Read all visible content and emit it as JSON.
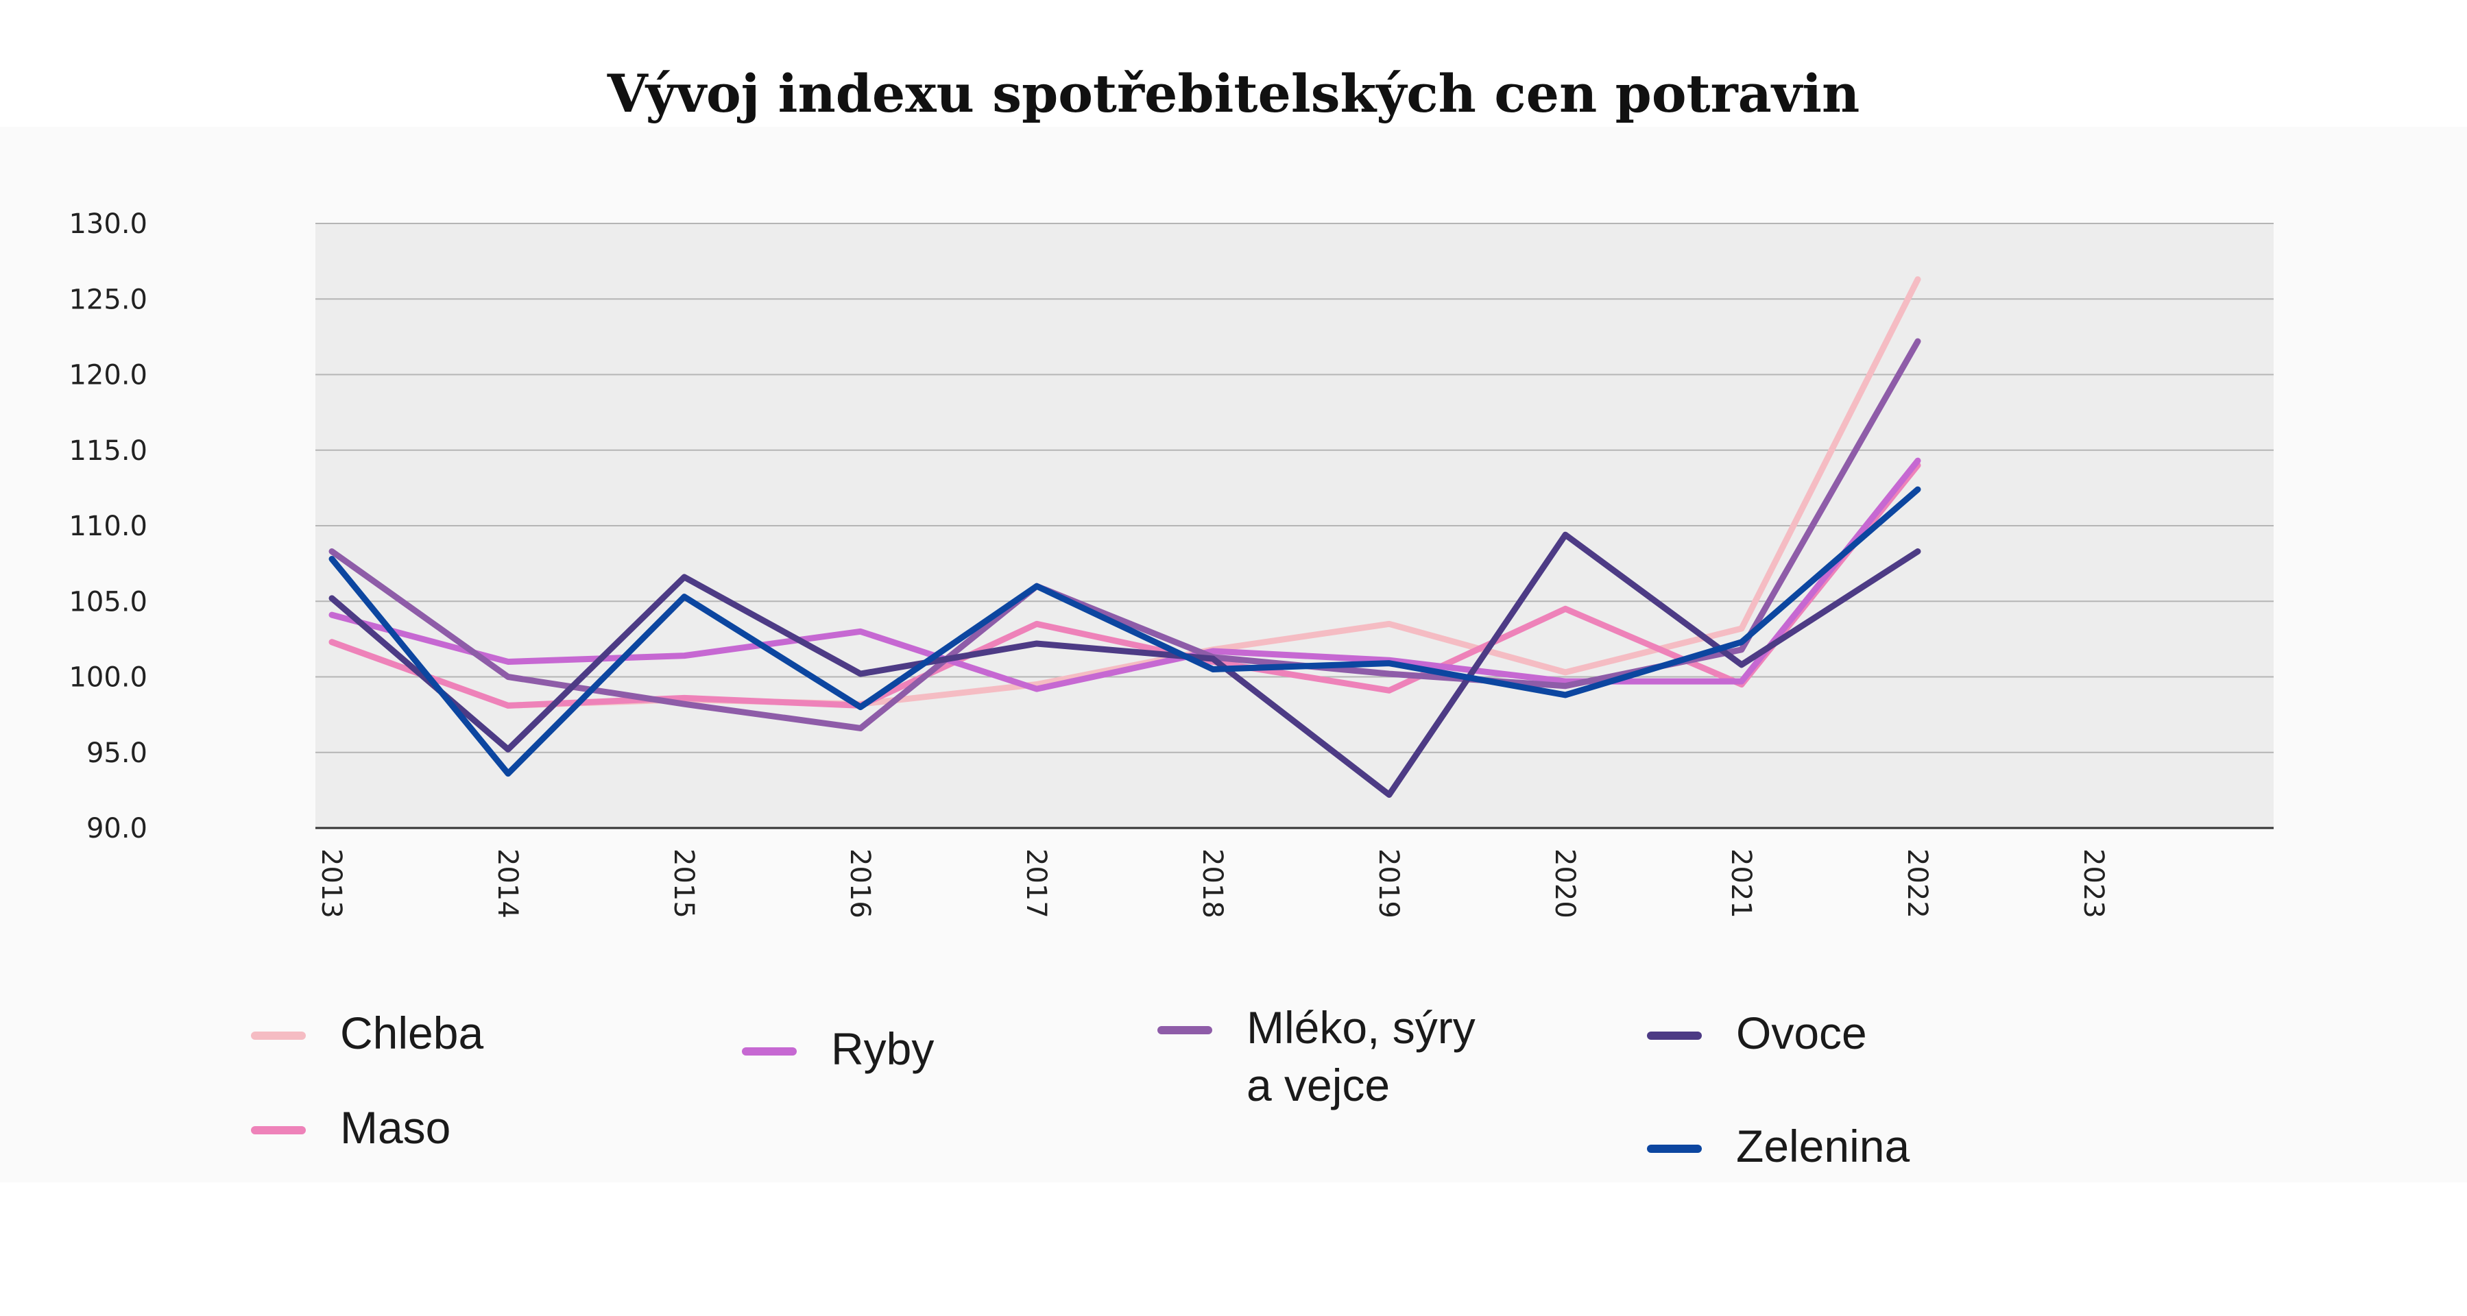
{
  "chart_data": {
    "type": "line",
    "title": "Vývoj indexu spotřebitelských cen potravin",
    "x": [
      "2013",
      "2014",
      "2015",
      "2016",
      "2017",
      "2018",
      "2019",
      "2020",
      "2021",
      "2022",
      "2023"
    ],
    "y_ticks": [
      "90.0",
      "95.0",
      "100.0",
      "105.0",
      "110.0",
      "115.0",
      "120.0",
      "125.0",
      "130.0"
    ],
    "ylim": [
      90,
      130
    ],
    "grid": "horizontal",
    "legend_position": "bottom",
    "series": [
      {
        "name": "Chleba",
        "color": "#f5bcc3",
        "values": [
          102.3,
          98.1,
          98.5,
          98.2,
          99.5,
          101.8,
          103.5,
          100.3,
          103.2,
          126.3,
          null
        ]
      },
      {
        "name": "Maso",
        "color": "#ee82b9",
        "values": [
          102.3,
          98.1,
          98.6,
          98.1,
          103.5,
          101.0,
          99.1,
          104.5,
          99.5,
          114.0,
          null
        ]
      },
      {
        "name": "Ryby",
        "color": "#c668d2",
        "values": [
          104.1,
          101.0,
          101.4,
          103.0,
          99.2,
          101.7,
          101.1,
          99.7,
          99.7,
          114.3,
          null
        ]
      },
      {
        "name": "Mléko, sýry\na vejce",
        "color": "#8e5ca8",
        "values": [
          108.3,
          100.0,
          98.2,
          96.6,
          106.0,
          101.3,
          100.2,
          99.4,
          101.8,
          122.2,
          null
        ]
      },
      {
        "name": "Ovoce",
        "color": "#4d3b85",
        "values": [
          105.2,
          95.2,
          106.6,
          100.2,
          102.2,
          101.2,
          92.2,
          109.4,
          100.8,
          108.3,
          null
        ]
      },
      {
        "name": "Zelenina",
        "color": "#0c46a0",
        "values": [
          107.8,
          93.6,
          105.3,
          98.0,
          106.0,
          100.5,
          100.9,
          98.8,
          102.3,
          112.4,
          null
        ]
      }
    ]
  }
}
